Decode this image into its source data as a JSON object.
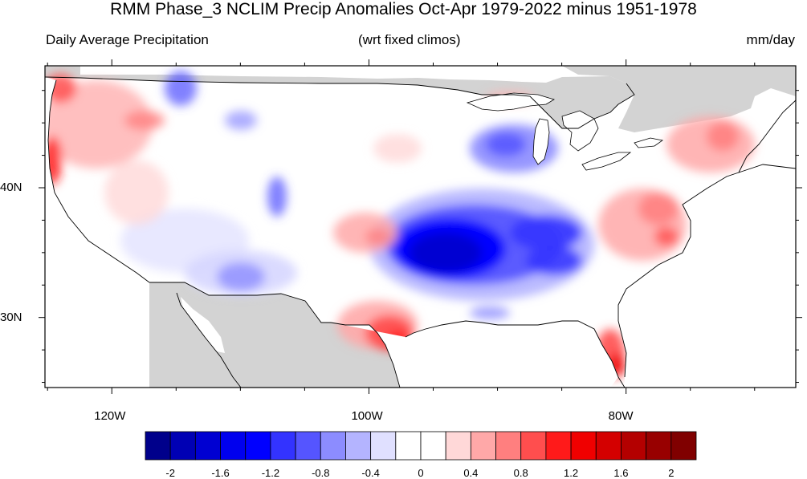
{
  "title": "RMM Phase_3 NCLIM Precip Anomalies Oct-Apr 1979-2022 minus 1951-1978",
  "subtitle_left": "Daily Average Precipitation",
  "subtitle_center": "(wrt fixed climos)",
  "subtitle_right": "mm/day",
  "map": {
    "lon_range": [
      -125,
      -67
    ],
    "lat_range": [
      24.5,
      49.5
    ],
    "lon_ticks": [
      {
        "lon": -120,
        "label": "120W"
      },
      {
        "lon": -100,
        "label": "100W"
      },
      {
        "lon": -80,
        "label": "80W"
      }
    ],
    "lat_ticks": [
      {
        "lat": 40,
        "label": "40N"
      },
      {
        "lat": 30,
        "label": "30N"
      }
    ],
    "land_mask_color": "#d3d3d3",
    "anomaly_regions": [
      {
        "name": "central-plains-dry-core",
        "center": [
          -93.5,
          35.7
        ],
        "value": -2.0
      },
      {
        "name": "ohio-valley-dry",
        "center": [
          -88.0,
          36.6
        ],
        "value": -1.5
      },
      {
        "name": "upper-midwest-dry",
        "center": [
          -89.5,
          43.5
        ],
        "value": -0.8
      },
      {
        "name": "tennessee-dry",
        "center": [
          -86.0,
          34.3
        ],
        "value": -1.2
      },
      {
        "name": "southwest-dry",
        "center": [
          -110.5,
          33.8
        ],
        "value": -0.6
      },
      {
        "name": "montana-dry",
        "center": [
          -112.0,
          47.5
        ],
        "value": -0.7
      },
      {
        "name": "colorado-dry",
        "center": [
          -106.0,
          40.0
        ],
        "value": -0.7
      },
      {
        "name": "pacific-nw-wet",
        "center": [
          -122.5,
          45.5
        ],
        "value": 1.0
      },
      {
        "name": "northern-california-wet",
        "center": [
          -123.5,
          41.5
        ],
        "value": 1.0
      },
      {
        "name": "texas-gulf-wet",
        "center": [
          -97.5,
          29.5
        ],
        "value": 1.2
      },
      {
        "name": "florida-wet",
        "center": [
          -80.5,
          26.5
        ],
        "value": 1.6
      },
      {
        "name": "mid-atlantic-wet",
        "center": [
          -78.0,
          37.5
        ],
        "value": 0.9
      },
      {
        "name": "northeast-wet",
        "center": [
          -73.5,
          43.5
        ],
        "value": 0.7
      },
      {
        "name": "kansas-wet",
        "center": [
          -100.0,
          37.0
        ],
        "value": 0.6
      }
    ]
  },
  "colorbar": {
    "colors": [
      "#00008b",
      "#0000b4",
      "#0000d2",
      "#0000ee",
      "#0000ff",
      "#3333ff",
      "#5555ff",
      "#8c8cff",
      "#b4b4ff",
      "#e0e0ff",
      "#ffffff",
      "#ffffff",
      "#ffd8d8",
      "#ffa8a8",
      "#ff7f7f",
      "#ff4e4e",
      "#ff1a1a",
      "#f00000",
      "#d40000",
      "#b40000",
      "#980000",
      "#800000"
    ],
    "labels": [
      "-2",
      "-1.6",
      "-1.2",
      "-0.8",
      "-0.4",
      "0",
      "0.4",
      "0.8",
      "1.2",
      "1.6",
      "2"
    ]
  }
}
